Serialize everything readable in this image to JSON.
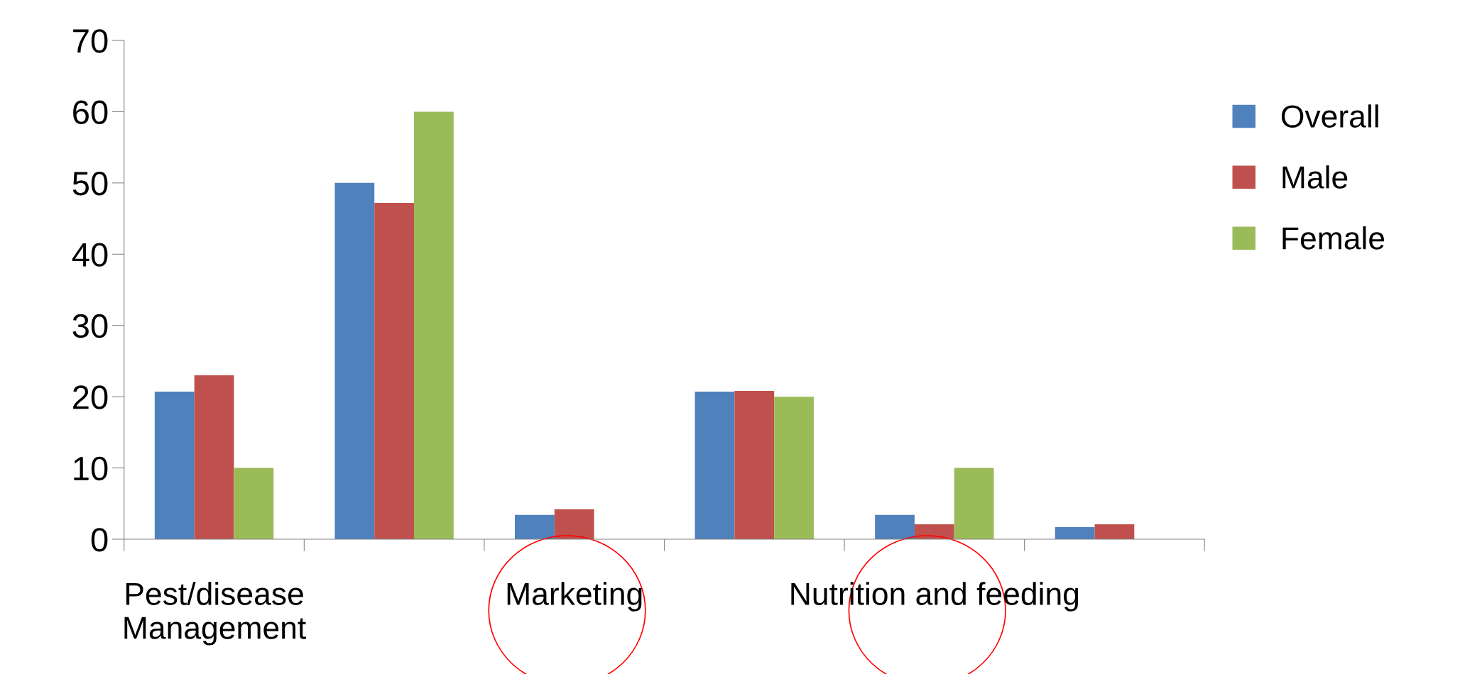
{
  "chart_data": {
    "type": "bar",
    "categories": [
      "Pest/disease\nManagement",
      null,
      "Marketing",
      null,
      "Nutrition and feeding",
      null
    ],
    "series": [
      {
        "name": "Overall",
        "color": "#4f81bd",
        "values": [
          20.7,
          50,
          3.4,
          20.7,
          3.4,
          1.7
        ]
      },
      {
        "name": "Male",
        "color": "#c0504d",
        "values": [
          23,
          47.2,
          4.2,
          20.8,
          2.1,
          2.1
        ]
      },
      {
        "name": "Female",
        "color": "#9bbb59",
        "values": [
          10,
          60,
          null,
          20,
          10,
          null
        ]
      }
    ],
    "ylim": [
      0,
      70
    ],
    "yticks": [
      0,
      10,
      20,
      30,
      40,
      50,
      60,
      70
    ],
    "grid": false,
    "legend": "right"
  }
}
